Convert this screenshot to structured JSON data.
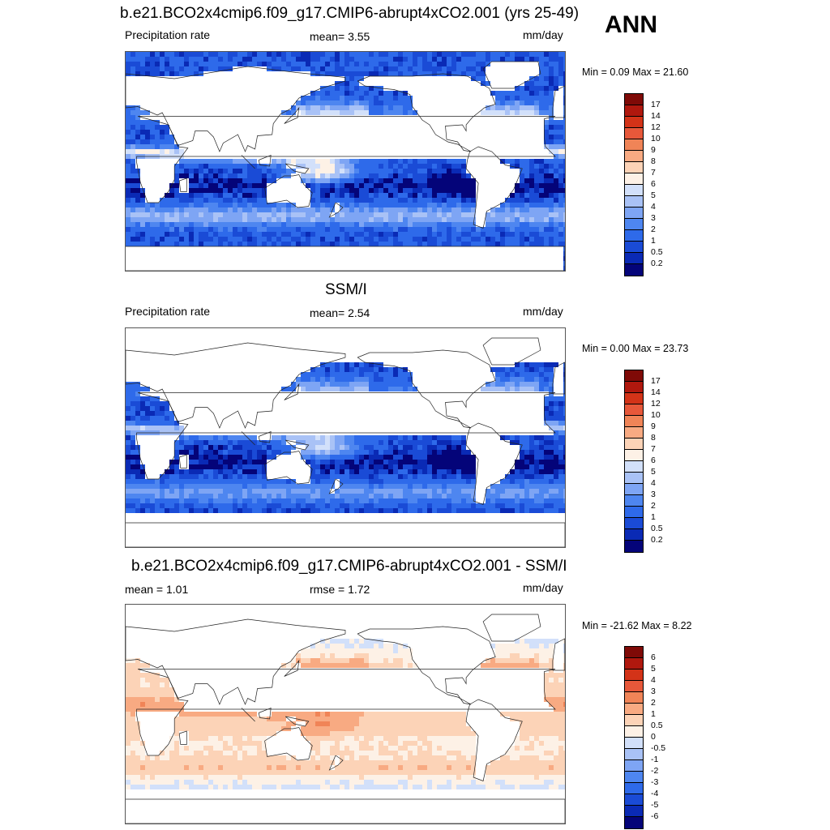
{
  "season": "ANN",
  "scale_colors": {
    "abs": [
      "#040479",
      "#0a2ab5",
      "#1a4bd6",
      "#2e6aea",
      "#4e86f0",
      "#7ea5f4",
      "#a9c2f6",
      "#d2e0fa",
      "#fdf1e6",
      "#fcd3b7",
      "#f8aa82",
      "#f08457",
      "#e7583a",
      "#d33318",
      "#b0180e",
      "#7f0a07"
    ],
    "diff": [
      "#040479",
      "#0a2ab5",
      "#1a4bd6",
      "#2e6aea",
      "#4e86f0",
      "#7ea5f4",
      "#a9c2f6",
      "#d2e0fa",
      "#fdf1e6",
      "#fcd3b7",
      "#f8aa82",
      "#f08457",
      "#e7583a",
      "#d33318",
      "#b0180e",
      "#7f0a07"
    ]
  },
  "panels": [
    {
      "title": "b.e21.BCO2x4cmip6.f09_g17.CMIP6-abrupt4xCO2.001 (yrs 25-49)",
      "left_label": "Precipitation rate",
      "mid_label": "mean=   3.55",
      "units": "mm/day",
      "minmax": "Min =   0.09 Max =  21.60",
      "levels": [
        "17",
        "14",
        "12",
        "10",
        "9",
        "8",
        "7",
        "6",
        "5",
        "4",
        "3",
        "2",
        "1",
        "0.5",
        "0.2"
      ],
      "kind": "model"
    },
    {
      "title": "SSM/I",
      "left_label": "Precipitation rate",
      "mid_label": "mean=   2.54",
      "units": "mm/day",
      "minmax": "Min =   0.00 Max =  23.73",
      "levels": [
        "17",
        "14",
        "12",
        "10",
        "9",
        "8",
        "7",
        "6",
        "5",
        "4",
        "3",
        "2",
        "1",
        "0.5",
        "0.2"
      ],
      "kind": "obs"
    },
    {
      "title": "b.e21.BCO2x4cmip6.f09_g17.CMIP6-abrupt4xCO2.001 - SSM/I",
      "left_label": "mean =    1.01",
      "mid_label": "rmse =    1.72",
      "units": "mm/day",
      "minmax": "Min = -21.62 Max =   8.22",
      "levels": [
        "6",
        "5",
        "4",
        "3",
        "2",
        "1",
        "0.5",
        "0",
        "-0.5",
        "-1",
        "-2",
        "-3",
        "-4",
        "-5",
        "-6"
      ],
      "kind": "diff"
    }
  ]
}
